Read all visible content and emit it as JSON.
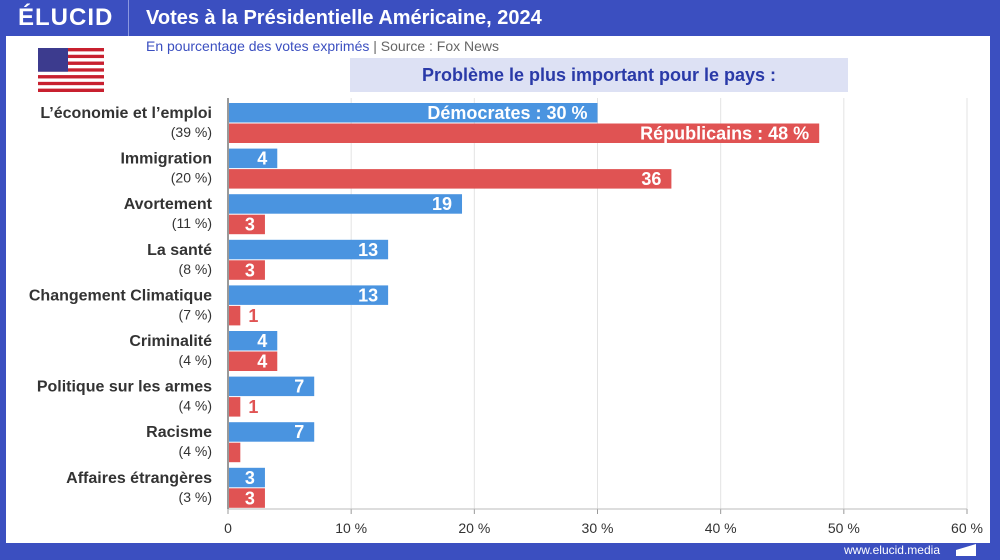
{
  "header": {
    "logo": "ÉLUCID",
    "title": "Votes à la Présidentielle Américaine, 2024"
  },
  "subtitle": {
    "unit": "En pourcentage des votes exprimés",
    "separator": "|",
    "source": "Source : Fox News"
  },
  "flag_icon": "us-flag-icon",
  "footer": {
    "url": "www.elucid.media"
  },
  "colors": {
    "brand": "#3b4fc0",
    "democrats": "#4a94e0",
    "republicans": "#e05353"
  },
  "chart_data": {
    "type": "bar",
    "orientation": "horizontal",
    "title": "Problème le plus important pour le pays  :",
    "categories": [
      "L’économie et l’emploi",
      "Immigration",
      "Avortement",
      "La santé",
      "Changement Climatique",
      "Criminalité",
      "Politique sur les armes",
      "Racisme",
      "Affaires étrangères"
    ],
    "category_shares": [
      "(39 %)",
      "(20 %)",
      "(11 %)",
      "(8 %)",
      "(7 %)",
      "(4 %)",
      "(4 %)",
      "(4 %)",
      "(3 %)"
    ],
    "series": [
      {
        "name": "Démocrates",
        "values": [
          30,
          4,
          19,
          13,
          13,
          4,
          7,
          7,
          3
        ],
        "labels": [
          "Démocrates : 30 %",
          "4",
          "19",
          "13",
          "13",
          "4",
          "7",
          "7",
          "3"
        ],
        "color": "#4a94e0"
      },
      {
        "name": "Républicains",
        "values": [
          48,
          36,
          3,
          3,
          1,
          4,
          1,
          1,
          3
        ],
        "labels": [
          "Républicains : 48 %",
          "36",
          "3",
          "3",
          "1",
          "4",
          "1",
          "",
          "3"
        ],
        "color": "#e05353"
      }
    ],
    "xlim": [
      0,
      60
    ],
    "xticks": [
      "0",
      "10 %",
      "20 %",
      "30 %",
      "40 %",
      "50 %",
      "60 %"
    ],
    "grid": true
  }
}
